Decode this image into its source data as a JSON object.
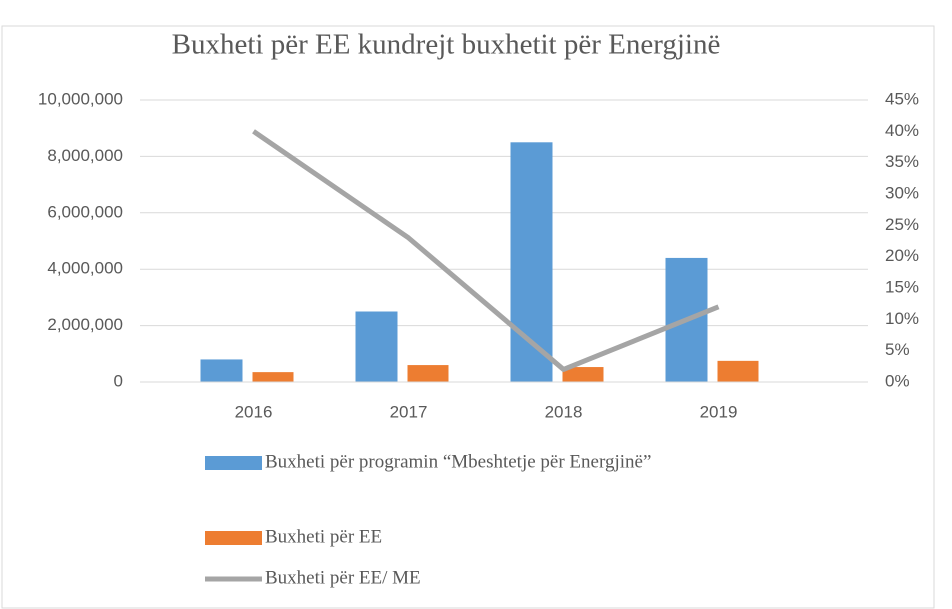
{
  "chart_data": {
    "type": "bar_line",
    "title": "Buxheti për EE kundrejt buxhetit për Energjinë",
    "categories": [
      "2016",
      "2017",
      "2018",
      "2019"
    ],
    "series": [
      {
        "name": "Buxheti për programin “Mbeshtetje për Energjinë”",
        "type": "bar",
        "color": "#5b9bd5",
        "values": [
          800000,
          2500000,
          8500000,
          4400000
        ]
      },
      {
        "name": "Buxheti për EE",
        "type": "bar",
        "color": "#ed7d31",
        "values": [
          350000,
          600000,
          530000,
          750000
        ]
      },
      {
        "name": "Buxheti për EE/ ME",
        "type": "line",
        "axis": "y2",
        "color": "#a5a5a5",
        "values": [
          40,
          23,
          2,
          12
        ]
      }
    ],
    "ylim": [
      0,
      10000000
    ],
    "yticks": [
      0,
      {
        "value": 2000000,
        "label": "2,000,000"
      },
      {
        "value": 4000000,
        "label": "4,000,000"
      },
      {
        "value": 6000000,
        "label": "6,000,000"
      },
      {
        "value": 8000000,
        "label": "8,000,000"
      },
      {
        "value": 10000000,
        "label": "10,000,000"
      }
    ],
    "y2lim": [
      0,
      45
    ],
    "y2ticks": [
      {
        "value": 0,
        "label": "0%"
      },
      {
        "value": 5,
        "label": "5%"
      },
      {
        "value": 10,
        "label": "10%"
      },
      {
        "value": 15,
        "label": "15%"
      },
      {
        "value": 20,
        "label": "20%"
      },
      {
        "value": 25,
        "label": "25%"
      },
      {
        "value": 30,
        "label": "30%"
      },
      {
        "value": 35,
        "label": "35%"
      },
      {
        "value": 40,
        "label": "40%"
      },
      {
        "value": 45,
        "label": "45%"
      }
    ],
    "grid": true,
    "legend": "bottom"
  }
}
